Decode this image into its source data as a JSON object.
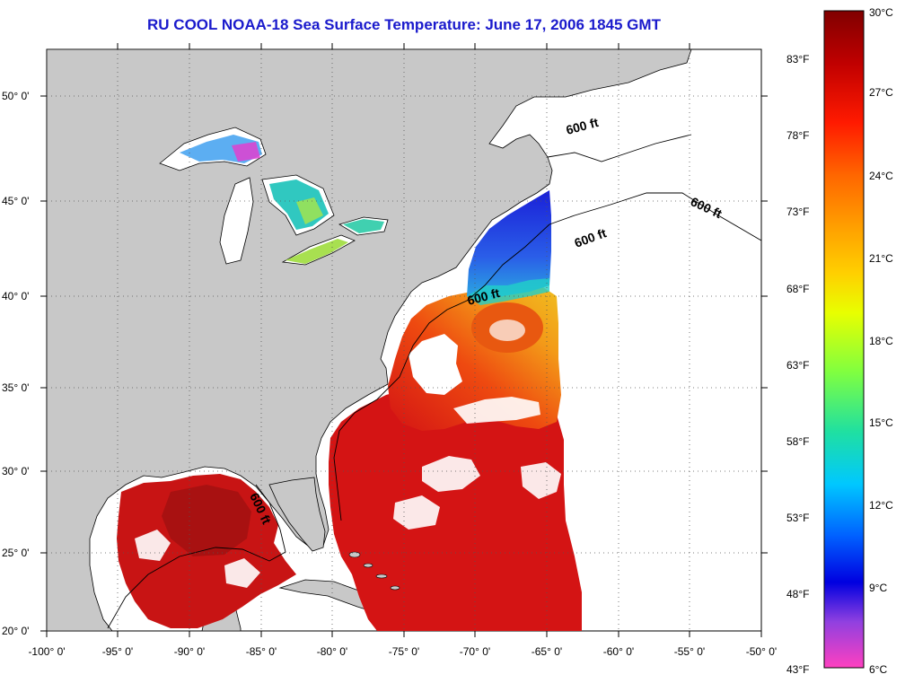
{
  "title": "RU COOL  NOAA-18  Sea Surface Temperature:  June 17, 2006 1845 GMT",
  "lat_labels": [
    "50° 0'",
    "45° 0'",
    "40° 0'",
    "35° 0'",
    "30° 0'",
    "25° 0'",
    "20° 0'"
  ],
  "lon_labels": [
    "-100° 0'",
    "-95° 0'",
    "-90° 0'",
    "-85° 0'",
    "-80° 0'",
    "-75° 0'",
    "-70° 0'",
    "-65° 0'",
    "-60° 0'",
    "-55° 0'",
    "-50° 0'"
  ],
  "isobath_labels": [
    "600 ft",
    "600 ft",
    "600 ft",
    "600 ft",
    "600 ft"
  ],
  "colorbar": {
    "celsius": [
      "30°C",
      "27°C",
      "24°C",
      "21°C",
      "18°C",
      "15°C",
      "12°C",
      "9°C",
      "6°C"
    ],
    "fahrenheit": [
      "83°F",
      "78°F",
      "73°F",
      "68°F",
      "63°F",
      "58°F",
      "53°F",
      "48°F",
      "43°F"
    ]
  },
  "colors": {
    "title": "#1a1acc",
    "land": "#c8c8c8",
    "no_data": "#ffffff",
    "warm": "#cc1010",
    "mid": "#f07a10",
    "cool": "#2040e0"
  }
}
